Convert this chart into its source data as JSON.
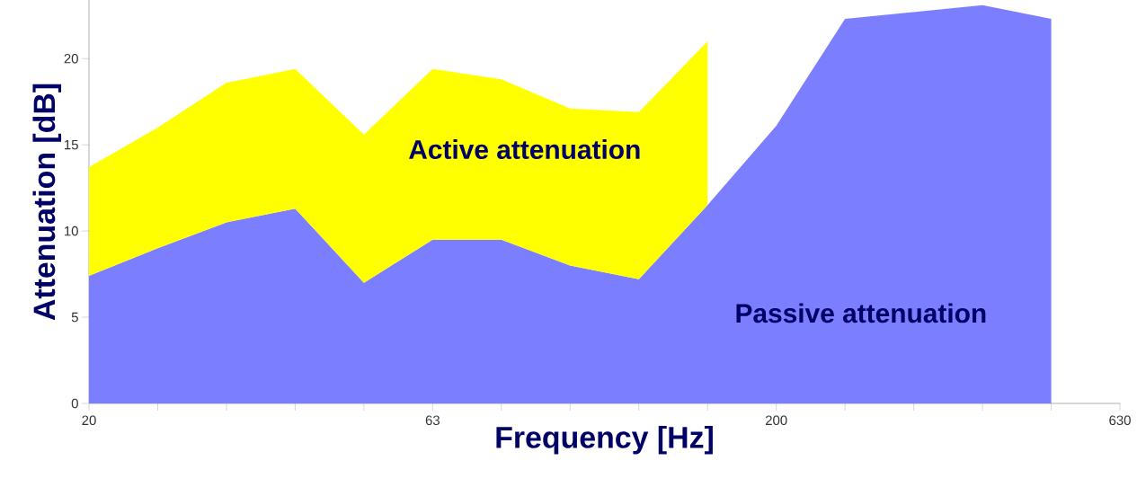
{
  "chart_data": {
    "type": "area",
    "stacked": true,
    "xlabel": "Frequency [Hz]",
    "ylabel": "Attenuation [dB]",
    "categories": [
      "20",
      null,
      null,
      null,
      null,
      "63",
      null,
      null,
      null,
      null,
      "200",
      null,
      null,
      null,
      null,
      "630"
    ],
    "ylim": [
      0,
      23.4
    ],
    "yticks": [
      0,
      5,
      10,
      15,
      20
    ],
    "series": [
      {
        "name": "Passive attenuation",
        "color": "#7b7fff",
        "values": [
          7.4,
          9.0,
          10.5,
          11.3,
          7.0,
          9.5,
          9.5,
          8.0,
          7.2,
          11.5,
          16.1,
          22.3,
          null,
          23.1,
          22.3,
          null
        ]
      },
      {
        "name": "Active attenuation",
        "color": "#ffff00",
        "values": [
          6.3,
          7.0,
          8.1,
          8.1,
          8.6,
          9.9,
          9.3,
          9.1,
          9.7,
          9.5,
          null,
          null,
          null,
          null,
          null,
          null
        ]
      }
    ]
  }
}
